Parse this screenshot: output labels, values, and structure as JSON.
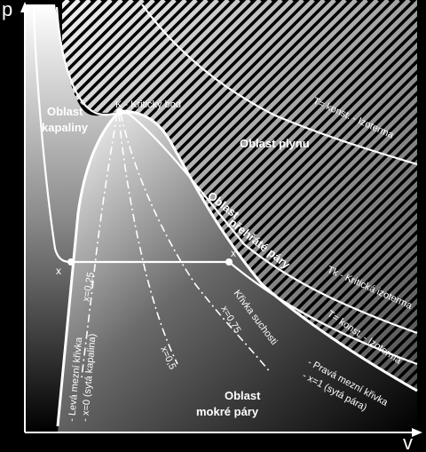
{
  "axes": {
    "y_label": "p",
    "x_label": "v"
  },
  "regions": {
    "liquid": [
      "Oblast",
      "kapaliny"
    ],
    "gas": "Oblast plynu",
    "superheated": [
      "Oblast",
      "přehřáté páry"
    ],
    "wet_steam": [
      "Oblast",
      "mokré páry"
    ]
  },
  "labels": {
    "critical_point": "K - Kritický bod",
    "isotherm_top": "T= konst. - Izoterma",
    "critical_isotherm": "Tk - Kritická izoterma",
    "isotherm_low": "T= konst. - Izoterma",
    "dryness_curve": "Křivka suchosti",
    "left_limit_1": "- Levá mezní křivka",
    "left_limit_2": "- x=0 (sytá kapalina)",
    "right_limit_1": "- Pravá mezní křivka",
    "right_limit_2": "- x=1 (sytá pára)",
    "point_x_left": "x",
    "point_x_right": "x",
    "x025": "x=0,25",
    "x05": "x=0,5",
    "x075": "x=0,75"
  },
  "colors": {
    "background": "#000000",
    "foreground": "#ffffff"
  }
}
